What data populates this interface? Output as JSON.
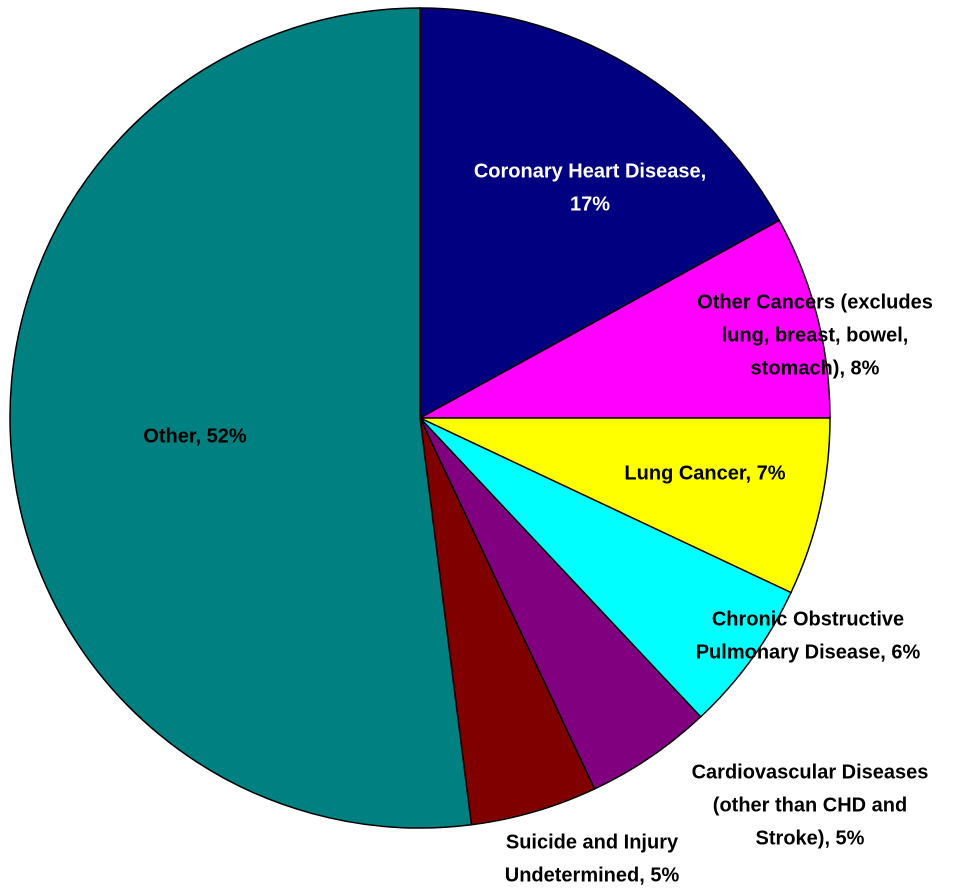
{
  "chart_data": {
    "type": "pie",
    "values": [
      17,
      8,
      7,
      6,
      5,
      5,
      52
    ],
    "value_labels": [
      [
        "Coronary Heart Disease,",
        "17%"
      ],
      [
        "Other Cancers (excludes",
        "lung, breast, bowel,",
        "stomach), 8%"
      ],
      [
        "Lung Cancer, 7%"
      ],
      [
        "Chronic Obstructive",
        "Pulmonary Disease, 6%"
      ],
      [
        "Cardiovascular Diseases",
        "(other than CHD and",
        "Stroke), 5%"
      ],
      [
        "Suicide and Injury",
        "Undetermined, 5%"
      ],
      [
        "Other, 52%"
      ]
    ],
    "colors": [
      "#000080",
      "#ff00ff",
      "#ffff00",
      "#00ffff",
      "#800080",
      "#800000",
      "#008080"
    ]
  }
}
